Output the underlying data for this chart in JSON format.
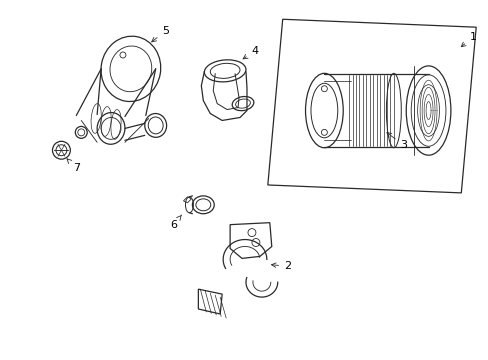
{
  "background_color": "#ffffff",
  "line_color": "#2a2a2a",
  "fig_width": 4.89,
  "fig_height": 3.6,
  "dpi": 100
}
